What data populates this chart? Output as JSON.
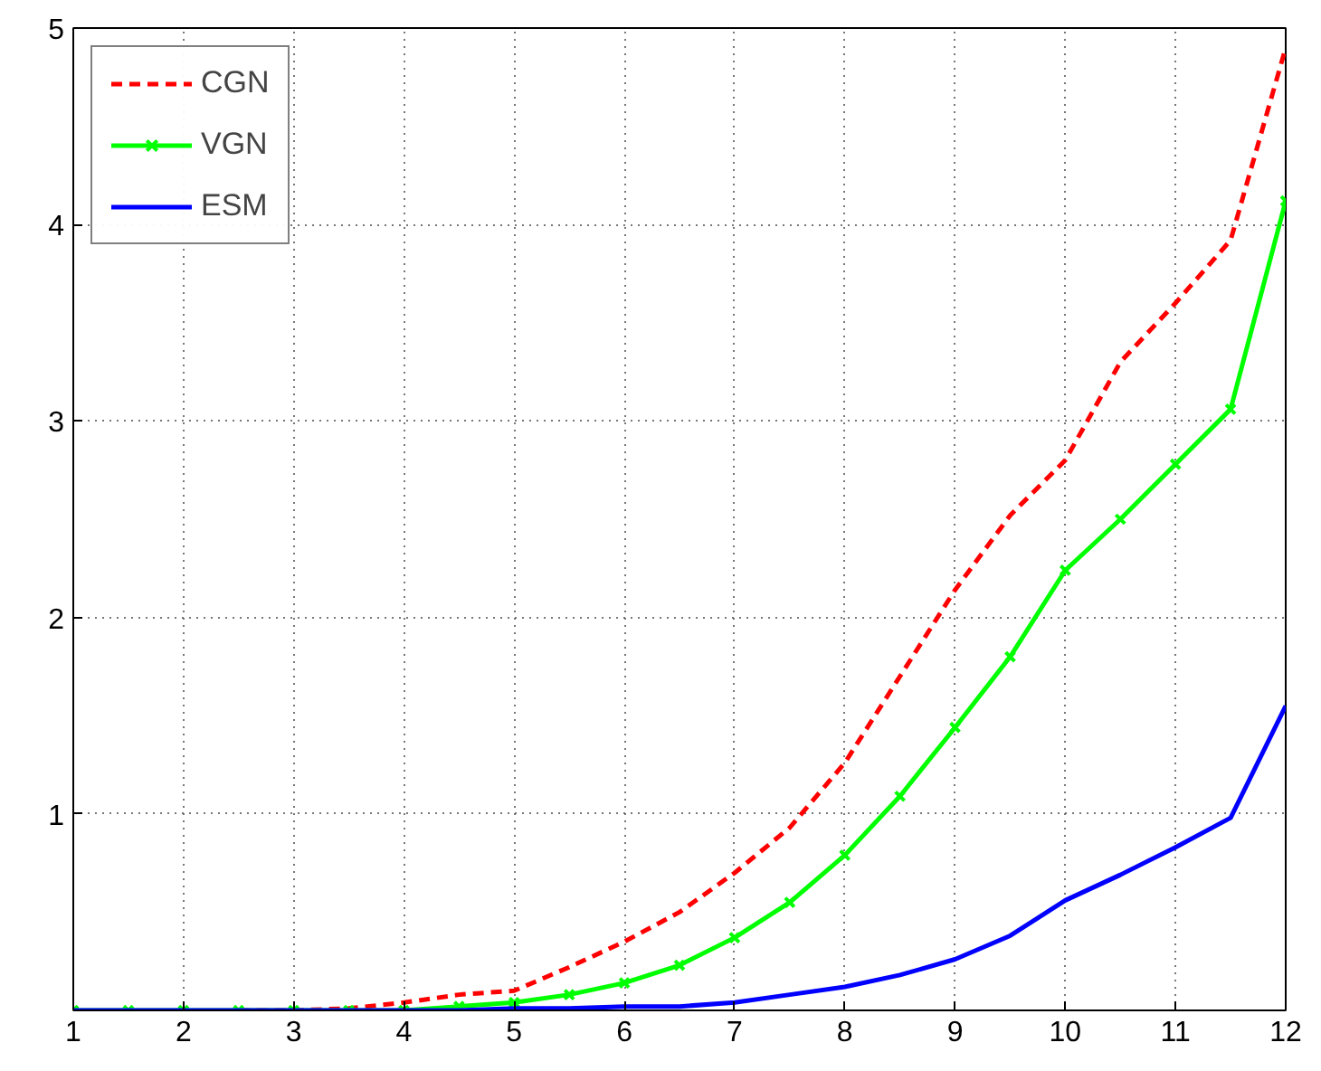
{
  "chart_data": {
    "type": "line",
    "x": [
      1,
      1.5,
      2,
      2.5,
      3,
      3.5,
      4,
      4.5,
      5,
      5.5,
      6,
      6.5,
      7,
      7.5,
      8,
      8.5,
      9,
      9.5,
      10,
      10.5,
      11,
      11.5,
      12
    ],
    "series": [
      {
        "name": "CGN",
        "color": "#ff0000",
        "line_style": "dashed",
        "marker": "none",
        "values": [
          null,
          null,
          null,
          0,
          0,
          0.01,
          0.04,
          0.08,
          0.1,
          0.22,
          0.35,
          0.5,
          0.7,
          0.93,
          1.26,
          1.7,
          2.14,
          2.52,
          2.8,
          3.3,
          3.6,
          3.92,
          4.9
        ]
      },
      {
        "name": "VGN",
        "color": "#00ff00",
        "line_style": "solid",
        "marker": "cross",
        "values": [
          0,
          0,
          0,
          0,
          0,
          0,
          0,
          0.02,
          0.04,
          0.08,
          0.14,
          0.23,
          0.37,
          0.55,
          0.79,
          1.09,
          1.44,
          1.8,
          2.24,
          2.5,
          2.78,
          3.06,
          4.12
        ]
      },
      {
        "name": "ESM",
        "color": "#0000ff",
        "line_style": "solid",
        "marker": "none",
        "values": [
          0,
          0,
          0,
          0,
          0,
          0,
          0,
          0,
          0.01,
          0.01,
          0.02,
          0.02,
          0.04,
          0.08,
          0.12,
          0.18,
          0.26,
          0.38,
          0.56,
          0.69,
          0.83,
          0.98,
          1.55
        ]
      }
    ],
    "xlim": [
      1,
      12
    ],
    "xticks": [
      1,
      2,
      3,
      4,
      5,
      6,
      7,
      8,
      9,
      10,
      11,
      12
    ],
    "ylim": [
      0,
      5
    ],
    "yticks": [
      1,
      2,
      3,
      4,
      5
    ],
    "grid": true,
    "legend": "top left"
  }
}
